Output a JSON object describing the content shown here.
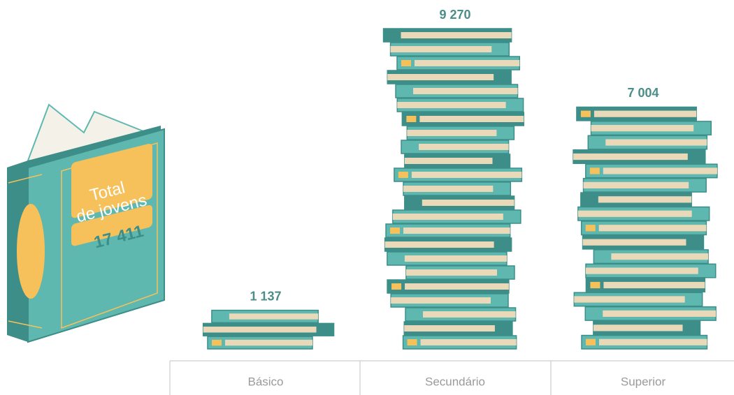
{
  "chart_data": {
    "type": "bar",
    "categories": [
      "Básico",
      "Secundário",
      "Superior"
    ],
    "values": [
      1137,
      9270,
      7004
    ],
    "value_labels": [
      "1 137",
      "9 270",
      "7 004"
    ],
    "total_title": [
      "Total",
      "de jovens"
    ],
    "total": 17411,
    "total_label": "17 411",
    "colors": {
      "cover": "#5fb8b0",
      "spine": "#3d8e89",
      "pages": "#ead9b8",
      "accent": "#f6c15a",
      "label": "#4b8d88"
    }
  }
}
